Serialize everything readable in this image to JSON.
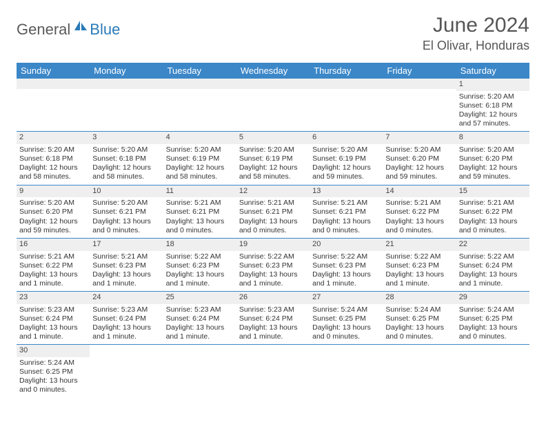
{
  "brand": {
    "part1": "General",
    "part2": "Blue"
  },
  "title": "June 2024",
  "location": "El Olivar, Honduras",
  "header_color": "#3b87c8",
  "header_text_color": "#ffffff",
  "daynum_bg": "#efefef",
  "border_color": "#3b87c8",
  "days": [
    "Sunday",
    "Monday",
    "Tuesday",
    "Wednesday",
    "Thursday",
    "Friday",
    "Saturday"
  ],
  "weeks": [
    [
      null,
      null,
      null,
      null,
      null,
      null,
      {
        "n": "1",
        "sr": "Sunrise: 5:20 AM",
        "ss": "Sunset: 6:18 PM",
        "dl": "Daylight: 12 hours and 57 minutes."
      }
    ],
    [
      {
        "n": "2",
        "sr": "Sunrise: 5:20 AM",
        "ss": "Sunset: 6:18 PM",
        "dl": "Daylight: 12 hours and 58 minutes."
      },
      {
        "n": "3",
        "sr": "Sunrise: 5:20 AM",
        "ss": "Sunset: 6:18 PM",
        "dl": "Daylight: 12 hours and 58 minutes."
      },
      {
        "n": "4",
        "sr": "Sunrise: 5:20 AM",
        "ss": "Sunset: 6:19 PM",
        "dl": "Daylight: 12 hours and 58 minutes."
      },
      {
        "n": "5",
        "sr": "Sunrise: 5:20 AM",
        "ss": "Sunset: 6:19 PM",
        "dl": "Daylight: 12 hours and 58 minutes."
      },
      {
        "n": "6",
        "sr": "Sunrise: 5:20 AM",
        "ss": "Sunset: 6:19 PM",
        "dl": "Daylight: 12 hours and 59 minutes."
      },
      {
        "n": "7",
        "sr": "Sunrise: 5:20 AM",
        "ss": "Sunset: 6:20 PM",
        "dl": "Daylight: 12 hours and 59 minutes."
      },
      {
        "n": "8",
        "sr": "Sunrise: 5:20 AM",
        "ss": "Sunset: 6:20 PM",
        "dl": "Daylight: 12 hours and 59 minutes."
      }
    ],
    [
      {
        "n": "9",
        "sr": "Sunrise: 5:20 AM",
        "ss": "Sunset: 6:20 PM",
        "dl": "Daylight: 12 hours and 59 minutes."
      },
      {
        "n": "10",
        "sr": "Sunrise: 5:20 AM",
        "ss": "Sunset: 6:21 PM",
        "dl": "Daylight: 13 hours and 0 minutes."
      },
      {
        "n": "11",
        "sr": "Sunrise: 5:21 AM",
        "ss": "Sunset: 6:21 PM",
        "dl": "Daylight: 13 hours and 0 minutes."
      },
      {
        "n": "12",
        "sr": "Sunrise: 5:21 AM",
        "ss": "Sunset: 6:21 PM",
        "dl": "Daylight: 13 hours and 0 minutes."
      },
      {
        "n": "13",
        "sr": "Sunrise: 5:21 AM",
        "ss": "Sunset: 6:21 PM",
        "dl": "Daylight: 13 hours and 0 minutes."
      },
      {
        "n": "14",
        "sr": "Sunrise: 5:21 AM",
        "ss": "Sunset: 6:22 PM",
        "dl": "Daylight: 13 hours and 0 minutes."
      },
      {
        "n": "15",
        "sr": "Sunrise: 5:21 AM",
        "ss": "Sunset: 6:22 PM",
        "dl": "Daylight: 13 hours and 0 minutes."
      }
    ],
    [
      {
        "n": "16",
        "sr": "Sunrise: 5:21 AM",
        "ss": "Sunset: 6:22 PM",
        "dl": "Daylight: 13 hours and 1 minute."
      },
      {
        "n": "17",
        "sr": "Sunrise: 5:21 AM",
        "ss": "Sunset: 6:23 PM",
        "dl": "Daylight: 13 hours and 1 minute."
      },
      {
        "n": "18",
        "sr": "Sunrise: 5:22 AM",
        "ss": "Sunset: 6:23 PM",
        "dl": "Daylight: 13 hours and 1 minute."
      },
      {
        "n": "19",
        "sr": "Sunrise: 5:22 AM",
        "ss": "Sunset: 6:23 PM",
        "dl": "Daylight: 13 hours and 1 minute."
      },
      {
        "n": "20",
        "sr": "Sunrise: 5:22 AM",
        "ss": "Sunset: 6:23 PM",
        "dl": "Daylight: 13 hours and 1 minute."
      },
      {
        "n": "21",
        "sr": "Sunrise: 5:22 AM",
        "ss": "Sunset: 6:23 PM",
        "dl": "Daylight: 13 hours and 1 minute."
      },
      {
        "n": "22",
        "sr": "Sunrise: 5:22 AM",
        "ss": "Sunset: 6:24 PM",
        "dl": "Daylight: 13 hours and 1 minute."
      }
    ],
    [
      {
        "n": "23",
        "sr": "Sunrise: 5:23 AM",
        "ss": "Sunset: 6:24 PM",
        "dl": "Daylight: 13 hours and 1 minute."
      },
      {
        "n": "24",
        "sr": "Sunrise: 5:23 AM",
        "ss": "Sunset: 6:24 PM",
        "dl": "Daylight: 13 hours and 1 minute."
      },
      {
        "n": "25",
        "sr": "Sunrise: 5:23 AM",
        "ss": "Sunset: 6:24 PM",
        "dl": "Daylight: 13 hours and 1 minute."
      },
      {
        "n": "26",
        "sr": "Sunrise: 5:23 AM",
        "ss": "Sunset: 6:24 PM",
        "dl": "Daylight: 13 hours and 1 minute."
      },
      {
        "n": "27",
        "sr": "Sunrise: 5:24 AM",
        "ss": "Sunset: 6:25 PM",
        "dl": "Daylight: 13 hours and 0 minutes."
      },
      {
        "n": "28",
        "sr": "Sunrise: 5:24 AM",
        "ss": "Sunset: 6:25 PM",
        "dl": "Daylight: 13 hours and 0 minutes."
      },
      {
        "n": "29",
        "sr": "Sunrise: 5:24 AM",
        "ss": "Sunset: 6:25 PM",
        "dl": "Daylight: 13 hours and 0 minutes."
      }
    ],
    [
      {
        "n": "30",
        "sr": "Sunrise: 5:24 AM",
        "ss": "Sunset: 6:25 PM",
        "dl": "Daylight: 13 hours and 0 minutes."
      },
      null,
      null,
      null,
      null,
      null,
      null
    ]
  ]
}
